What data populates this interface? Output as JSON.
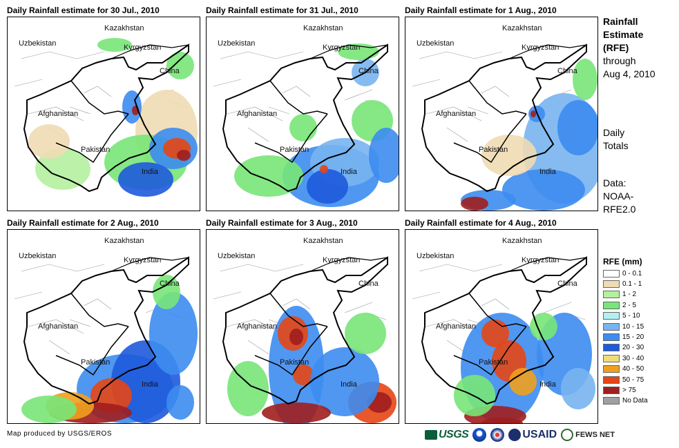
{
  "panels": [
    {
      "title": "Daily Rainfall estimate for 30 Jul., 2010",
      "pattern": "p0"
    },
    {
      "title": "Daily Rainfall estimate for 31 Jul., 2010",
      "pattern": "p1"
    },
    {
      "title": "Daily Rainfall estimate for 1 Aug., 2010",
      "pattern": "p2"
    },
    {
      "title": "Daily Rainfall estimate for 2 Aug., 2010",
      "pattern": "p3"
    },
    {
      "title": "Daily Rainfall estimate for 3 Aug., 2010",
      "pattern": "p4"
    },
    {
      "title": "Daily Rainfall estimate for 4 Aug., 2010",
      "pattern": "p5"
    }
  ],
  "country_labels": {
    "kazakhstan": "Kazakhstan",
    "uzbekistan": "Uzbekistan",
    "kyrgyzstan": "Kyrgyzstan",
    "china": "China",
    "afghanistan": "Afghanistan",
    "pakistan": "Pakistan",
    "india": "India"
  },
  "side": {
    "title_bold": [
      "Rainfall",
      "Estimate",
      "(RFE)"
    ],
    "title_rest": [
      "through",
      "Aug 4, 2010"
    ],
    "totals": [
      "Daily",
      "Totals"
    ],
    "data": [
      "Data:",
      "NOAA-",
      "RFE2.0"
    ]
  },
  "legend": {
    "title": "RFE (mm)",
    "items": [
      {
        "label": "0 - 0.1",
        "color": "#ffffff"
      },
      {
        "label": "0.1 - 1",
        "color": "#f0dcb4"
      },
      {
        "label": "1 - 2",
        "color": "#b4f0a0"
      },
      {
        "label": "2 - 5",
        "color": "#78e678"
      },
      {
        "label": "5 - 10",
        "color": "#b4f0f0"
      },
      {
        "label": "10 - 15",
        "color": "#78b4f0"
      },
      {
        "label": "15 - 20",
        "color": "#3c8cf0"
      },
      {
        "label": "20 - 30",
        "color": "#1e5adc"
      },
      {
        "label": "30 - 40",
        "color": "#f0dc78"
      },
      {
        "label": "40 - 50",
        "color": "#f0a01e"
      },
      {
        "label": "50 - 75",
        "color": "#e64614"
      },
      {
        "label": "> 75",
        "color": "#a01e1e"
      },
      {
        "label": "No Data",
        "color": "#a0a0a0"
      }
    ]
  },
  "footer": {
    "credit": "Map produced by USGS/EROS",
    "logos": [
      "USGS",
      "NOAA",
      "DOI",
      "USAID",
      "FEWS NET"
    ]
  }
}
